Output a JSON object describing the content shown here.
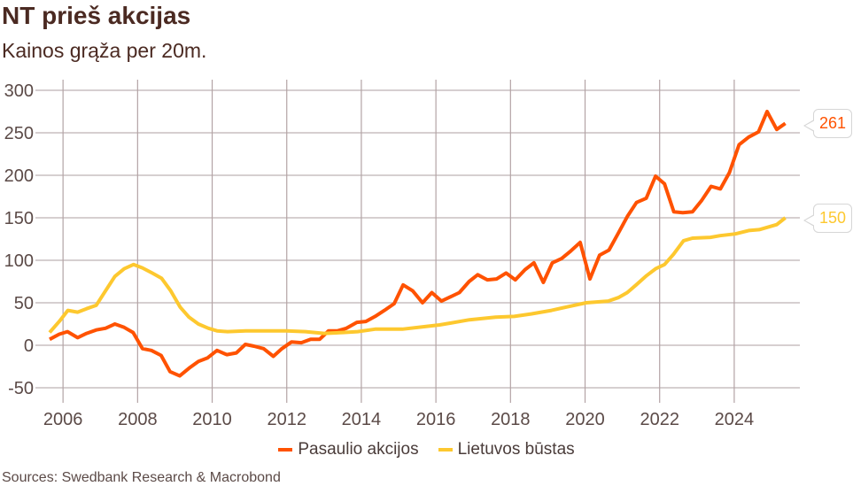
{
  "chart_data": {
    "type": "line",
    "title": "NT prieš akcijas",
    "subtitle": "Kainos grąža per 20m.",
    "source": "Sources: Swedbank Research & Macrobond",
    "xlabel": "",
    "ylabel": "",
    "xlim": [
      2005.26,
      2025.76
    ],
    "ylim": [
      -50,
      300
    ],
    "grid": true,
    "legend_position": "bottom",
    "x_ticks": [
      2006,
      2008,
      2010,
      2012,
      2014,
      2016,
      2018,
      2020,
      2022,
      2024
    ],
    "x_tick_labels": [
      "2006",
      "2008",
      "2010",
      "2012",
      "2014",
      "2016",
      "2018",
      "2020",
      "2022",
      "2024"
    ],
    "y_ticks": [
      300,
      250,
      200,
      150,
      100,
      50,
      0,
      -50
    ],
    "y_tick_labels": [
      "300",
      "250",
      "200",
      "150",
      "100",
      "50",
      "0",
      "-50"
    ],
    "series": [
      {
        "name": "Pasaulio akcijos",
        "color": "#FF5200",
        "end_label": "261",
        "points": [
          [
            2005.64,
            7
          ],
          [
            2005.9,
            13
          ],
          [
            2006.12,
            16
          ],
          [
            2006.39,
            9
          ],
          [
            2006.63,
            14
          ],
          [
            2006.89,
            18
          ],
          [
            2007.14,
            20
          ],
          [
            2007.39,
            25
          ],
          [
            2007.64,
            21
          ],
          [
            2007.88,
            15
          ],
          [
            2008.13,
            -4
          ],
          [
            2008.37,
            -6
          ],
          [
            2008.63,
            -12
          ],
          [
            2008.87,
            -31
          ],
          [
            2009.13,
            -36
          ],
          [
            2009.38,
            -27
          ],
          [
            2009.63,
            -19
          ],
          [
            2009.87,
            -15
          ],
          [
            2010.13,
            -6
          ],
          [
            2010.39,
            -11
          ],
          [
            2010.65,
            -9
          ],
          [
            2010.89,
            1
          ],
          [
            2011.12,
            -1
          ],
          [
            2011.38,
            -4
          ],
          [
            2011.64,
            -13
          ],
          [
            2011.87,
            -4
          ],
          [
            2012.13,
            4
          ],
          [
            2012.39,
            3
          ],
          [
            2012.64,
            7
          ],
          [
            2012.88,
            7
          ],
          [
            2013.12,
            17
          ],
          [
            2013.36,
            17
          ],
          [
            2013.6,
            20
          ],
          [
            2013.88,
            27
          ],
          [
            2014.12,
            28
          ],
          [
            2014.37,
            34
          ],
          [
            2014.62,
            41
          ],
          [
            2014.88,
            49
          ],
          [
            2015.12,
            71
          ],
          [
            2015.38,
            64
          ],
          [
            2015.64,
            50
          ],
          [
            2015.89,
            62
          ],
          [
            2016.15,
            52
          ],
          [
            2016.39,
            57
          ],
          [
            2016.63,
            62
          ],
          [
            2016.89,
            75
          ],
          [
            2017.12,
            83
          ],
          [
            2017.38,
            77
          ],
          [
            2017.63,
            78
          ],
          [
            2017.88,
            85
          ],
          [
            2018.13,
            77
          ],
          [
            2018.39,
            89
          ],
          [
            2018.63,
            97
          ],
          [
            2018.88,
            74
          ],
          [
            2019.12,
            97
          ],
          [
            2019.37,
            102
          ],
          [
            2019.62,
            111
          ],
          [
            2019.87,
            121
          ],
          [
            2020.13,
            78
          ],
          [
            2020.39,
            106
          ],
          [
            2020.64,
            112
          ],
          [
            2020.88,
            131
          ],
          [
            2021.14,
            152
          ],
          [
            2021.38,
            168
          ],
          [
            2021.64,
            173
          ],
          [
            2021.89,
            199
          ],
          [
            2022.13,
            190
          ],
          [
            2022.38,
            157
          ],
          [
            2022.62,
            156
          ],
          [
            2022.88,
            157
          ],
          [
            2023.12,
            170
          ],
          [
            2023.38,
            187
          ],
          [
            2023.63,
            184
          ],
          [
            2023.87,
            203
          ],
          [
            2024.13,
            236
          ],
          [
            2024.39,
            245
          ],
          [
            2024.65,
            251
          ],
          [
            2024.88,
            275
          ],
          [
            2025.14,
            254
          ],
          [
            2025.37,
            261
          ]
        ]
      },
      {
        "name": "Lietuvos būstas",
        "color": "#FDC82F",
        "end_label": "150",
        "points": [
          [
            2005.64,
            15
          ],
          [
            2005.9,
            28
          ],
          [
            2006.13,
            41
          ],
          [
            2006.39,
            39
          ],
          [
            2006.63,
            43
          ],
          [
            2006.89,
            47
          ],
          [
            2007.14,
            64
          ],
          [
            2007.39,
            81
          ],
          [
            2007.64,
            90
          ],
          [
            2007.89,
            95
          ],
          [
            2008.13,
            91
          ],
          [
            2008.39,
            85
          ],
          [
            2008.64,
            79
          ],
          [
            2008.89,
            64
          ],
          [
            2009.14,
            45
          ],
          [
            2009.38,
            33
          ],
          [
            2009.63,
            25
          ],
          [
            2009.9,
            20
          ],
          [
            2010.13,
            17
          ],
          [
            2010.41,
            16
          ],
          [
            2010.9,
            17
          ],
          [
            2011.5,
            17
          ],
          [
            2012.0,
            17
          ],
          [
            2012.5,
            16
          ],
          [
            2013.0,
            14
          ],
          [
            2013.5,
            15
          ],
          [
            2013.9,
            16
          ],
          [
            2014.37,
            19
          ],
          [
            2015.1,
            19
          ],
          [
            2015.71,
            22
          ],
          [
            2016.1,
            24
          ],
          [
            2016.38,
            26
          ],
          [
            2016.9,
            30
          ],
          [
            2017.6,
            33
          ],
          [
            2018.1,
            34
          ],
          [
            2018.57,
            37
          ],
          [
            2019.1,
            41
          ],
          [
            2019.5,
            45
          ],
          [
            2020.03,
            50
          ],
          [
            2020.62,
            52
          ],
          [
            2020.89,
            56
          ],
          [
            2021.13,
            62
          ],
          [
            2021.37,
            71
          ],
          [
            2021.65,
            82
          ],
          [
            2021.89,
            90
          ],
          [
            2022.13,
            95
          ],
          [
            2022.37,
            107
          ],
          [
            2022.64,
            123
          ],
          [
            2022.88,
            126
          ],
          [
            2023.36,
            127
          ],
          [
            2023.62,
            129
          ],
          [
            2024.03,
            131
          ],
          [
            2024.39,
            135
          ],
          [
            2024.67,
            136
          ],
          [
            2025.14,
            142
          ],
          [
            2025.37,
            150
          ]
        ]
      }
    ]
  }
}
